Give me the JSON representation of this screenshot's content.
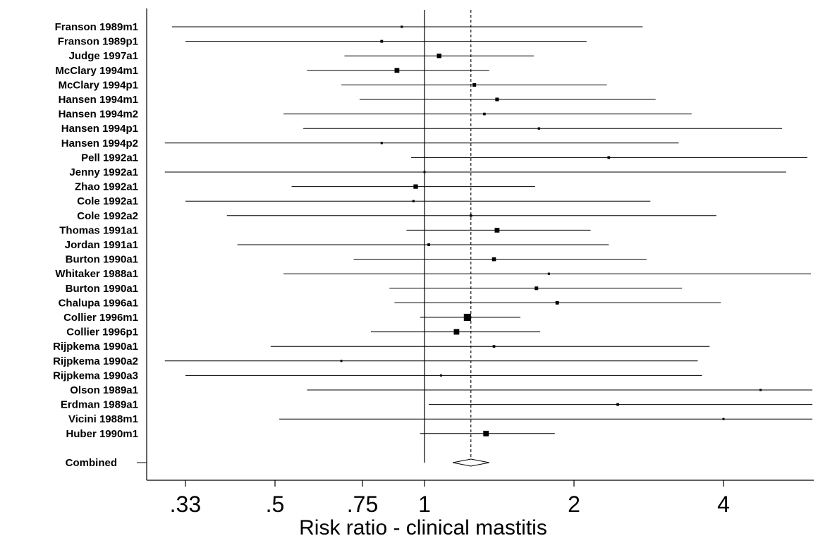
{
  "chart_data": {
    "type": "forest",
    "xlabel": "Risk ratio - clinical mastitis",
    "x_scale": "log",
    "xlim": [
      0.28,
      6.2
    ],
    "reference_line": 1,
    "combined_line": 1.24,
    "ticks": [
      {
        "value": 0.33,
        "label": ".33"
      },
      {
        "value": 0.5,
        "label": ".5"
      },
      {
        "value": 0.75,
        "label": ".75"
      },
      {
        "value": 1,
        "label": "1"
      },
      {
        "value": 2,
        "label": "2"
      },
      {
        "value": 4,
        "label": "4"
      }
    ],
    "studies": [
      {
        "label": "Franson 1989m1",
        "rr": 0.9,
        "lo": 0.31,
        "hi": 2.75,
        "weight": 1
      },
      {
        "label": "Franson 1989p1",
        "rr": 0.82,
        "lo": 0.33,
        "hi": 2.12,
        "weight": 1.5
      },
      {
        "label": "Judge 1997a1",
        "rr": 1.07,
        "lo": 0.69,
        "hi": 1.66,
        "weight": 4
      },
      {
        "label": "McClary 1994m1",
        "rr": 0.88,
        "lo": 0.58,
        "hi": 1.35,
        "weight": 4.5
      },
      {
        "label": "McClary 1994p1",
        "rr": 1.26,
        "lo": 0.68,
        "hi": 2.33,
        "weight": 2.5
      },
      {
        "label": "Hansen 1994m1",
        "rr": 1.4,
        "lo": 0.74,
        "hi": 2.92,
        "weight": 2.5
      },
      {
        "label": "Hansen 1994m2",
        "rr": 1.32,
        "lo": 0.52,
        "hi": 3.45,
        "weight": 1.3
      },
      {
        "label": "Hansen 1994p1",
        "rr": 1.7,
        "lo": 0.57,
        "hi": 5.25,
        "weight": 1.1
      },
      {
        "label": "Hansen 1994p2",
        "rr": 0.82,
        "lo": 0.3,
        "hi": 3.25,
        "weight": 1
      },
      {
        "label": "Pell 1992a1",
        "rr": 2.35,
        "lo": 0.94,
        "hi": 5.9,
        "weight": 1.4
      },
      {
        "label": "Jenny 1992a1",
        "rr": 1.0,
        "lo": 0.3,
        "hi": 5.35,
        "weight": 0.8
      },
      {
        "label": "Zhao 1992a1",
        "rr": 0.96,
        "lo": 0.54,
        "hi": 1.67,
        "weight": 3.8
      },
      {
        "label": "Cole 1992a1",
        "rr": 0.95,
        "lo": 0.33,
        "hi": 2.85,
        "weight": 1
      },
      {
        "label": "Cole 1992a2",
        "rr": 1.24,
        "lo": 0.4,
        "hi": 3.87,
        "weight": 1.2
      },
      {
        "label": "Thomas 1991a1",
        "rr": 1.4,
        "lo": 0.92,
        "hi": 2.16,
        "weight": 4.5
      },
      {
        "label": "Jordan 1991a1",
        "rr": 1.02,
        "lo": 0.42,
        "hi": 2.35,
        "weight": 1.4
      },
      {
        "label": "Burton 1990a1",
        "rr": 1.38,
        "lo": 0.72,
        "hi": 2.8,
        "weight": 3
      },
      {
        "label": "Whitaker 1988a1",
        "rr": 1.78,
        "lo": 0.52,
        "hi": 6.0,
        "weight": 1
      },
      {
        "label": "Burton 1990a1",
        "rr": 1.68,
        "lo": 0.85,
        "hi": 3.3,
        "weight": 2.5
      },
      {
        "label": "Chalupa 1996a1",
        "rr": 1.85,
        "lo": 0.87,
        "hi": 3.95,
        "weight": 2.3
      },
      {
        "label": "Collier 1996m1",
        "rr": 1.22,
        "lo": 0.98,
        "hi": 1.56,
        "weight": 10
      },
      {
        "label": "Collier 1996p1",
        "rr": 1.16,
        "lo": 0.78,
        "hi": 1.71,
        "weight": 6
      },
      {
        "label": "Rijpkema 1990a1",
        "rr": 1.38,
        "lo": 0.49,
        "hi": 3.75,
        "weight": 1.4
      },
      {
        "label": "Rijpkema 1990a2",
        "rr": 0.68,
        "lo": 0.3,
        "hi": 3.55,
        "weight": 0.8
      },
      {
        "label": "Rijpkema 1990a3",
        "rr": 1.08,
        "lo": 0.33,
        "hi": 3.62,
        "weight": 0.8
      },
      {
        "label": "Olson 1989a1",
        "rr": 4.75,
        "lo": 0.58,
        "hi": 6.2,
        "weight": 0.7
      },
      {
        "label": "Erdman 1989a1",
        "rr": 2.45,
        "lo": 1.02,
        "hi": 6.2,
        "weight": 1.4
      },
      {
        "label": "Vicini 1988m1",
        "rr": 4.0,
        "lo": 0.51,
        "hi": 6.2,
        "weight": 0.6
      },
      {
        "label": "Huber 1990m1",
        "rr": 1.33,
        "lo": 0.98,
        "hi": 1.83,
        "weight": 6
      }
    ],
    "combined": {
      "label": "Combined",
      "rr": 1.24,
      "lo": 1.14,
      "hi": 1.35
    }
  }
}
